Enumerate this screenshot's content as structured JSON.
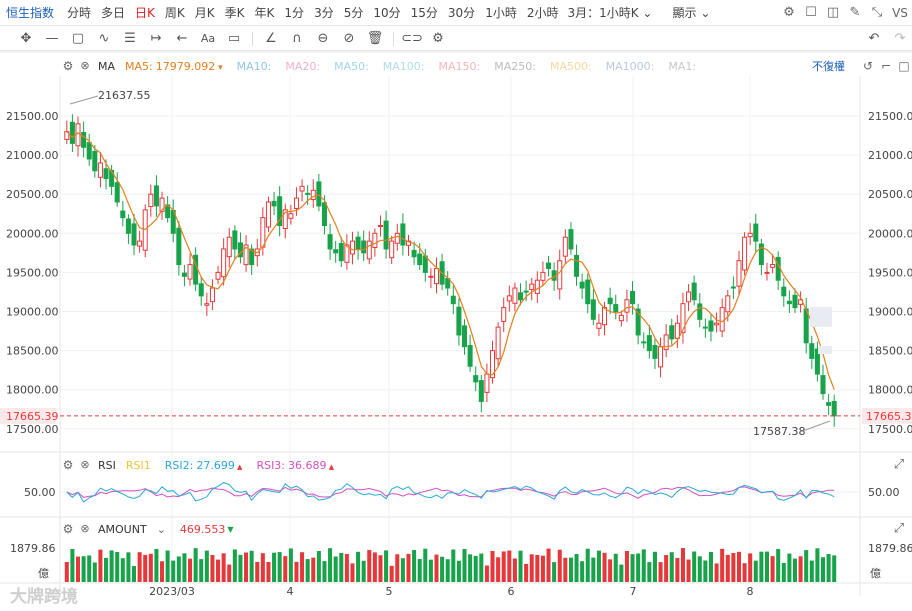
{
  "toolbar": {
    "symbol": "恒生指数",
    "periods": [
      "分時",
      "多日",
      "日K",
      "周K",
      "月K",
      "季K",
      "年K",
      "1分",
      "3分",
      "5分",
      "10分",
      "15分",
      "30分",
      "1小時",
      "2小時"
    ],
    "active_period": "日K",
    "drop_1": "3月：1小時K",
    "display_label": "顯示",
    "vs_label": "VS"
  },
  "main_panel": {
    "indicator_name": "MA",
    "ma_items": [
      {
        "label": "MA5:",
        "value": "17979.092",
        "color": "#e3801e"
      },
      {
        "label": "MA10:",
        "value": "",
        "color": "#8cc8e8"
      },
      {
        "label": "MA20:",
        "value": "",
        "color": "#f0b0c8"
      },
      {
        "label": "MA50:",
        "value": "",
        "color": "#a0d4ec"
      },
      {
        "label": "MA100:",
        "value": "",
        "color": "#b0dce8"
      },
      {
        "label": "MA150:",
        "value": "",
        "color": "#f4b4bc"
      },
      {
        "label": "MA250:",
        "value": "",
        "color": "#bcbcbc"
      },
      {
        "label": "MA500:",
        "value": "",
        "color": "#f4d8a0"
      },
      {
        "label": "MA1000:",
        "value": "",
        "color": "#b8c8e0"
      },
      {
        "label": "MA1:",
        "value": "",
        "color": "#c8c8c8"
      }
    ],
    "adjust_label": "不復權",
    "y_ticks": [
      "21500.00",
      "21000.00",
      "20500.00",
      "20000.00",
      "19500.00",
      "19000.00",
      "18500.00",
      "18000.00",
      "17500.00"
    ],
    "current_price": "17665.39",
    "high_label": "21637.55",
    "low_label": "17587.38",
    "up_color": "#e5383b",
    "down_color": "#18a34a"
  },
  "rsi_panel": {
    "indicator_name": "RSI",
    "items": [
      {
        "label": "RSI1",
        "value": "",
        "color": "#f0c040"
      },
      {
        "label": "RSI2:",
        "value": "27.699",
        "color": "#2aa8d8"
      },
      {
        "label": "RSI3:",
        "value": "36.689",
        "color": "#d050c0"
      }
    ],
    "y_tick": "50.00"
  },
  "amount_panel": {
    "indicator_name": "AMOUNT",
    "value": "469.553",
    "y_tick": "1879.86",
    "unit": "億"
  },
  "x_axis": [
    "2023/03",
    "4",
    "5",
    "6",
    "7",
    "8"
  ],
  "watermark": "大牌跨境"
}
